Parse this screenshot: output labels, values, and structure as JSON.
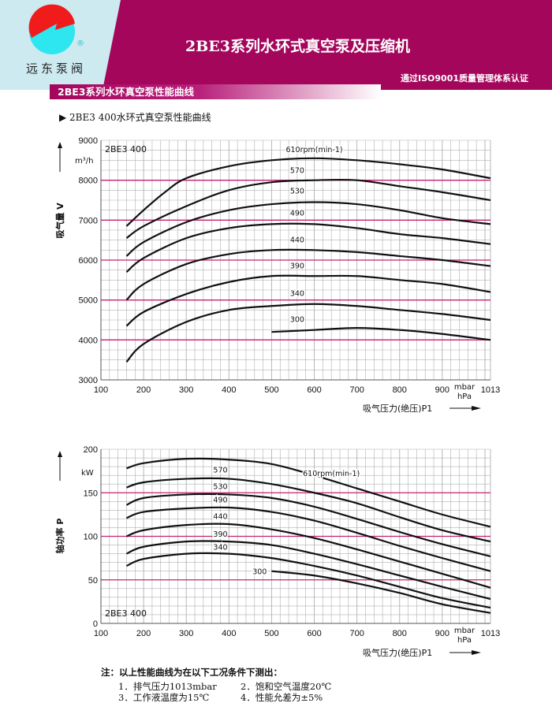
{
  "header": {
    "title": "2BE3系列水环式真空泵及压缩机",
    "certification": "通过ISO9001质量管理体系认证",
    "brand": "远东泵阀",
    "registered": "®"
  },
  "colors": {
    "brand": "#a4065c",
    "logo_red": "#f01c1c",
    "logo_cyan": "#2ee6f0",
    "gridline": "#b0b0b0",
    "major_line": "#c4206e"
  },
  "section_title": "2BE3系列水环真空泵性能曲线",
  "subtitle": "▶ 2BE3 400水环式真空泵性能曲线",
  "chart_data": [
    {
      "type": "line",
      "title": "2BE3 400",
      "ylabel": "吸气量 V",
      "yunit": "m³/h",
      "xlabel": "吸气压力(绝压)P1",
      "xunit_top": "mbar",
      "xunit_bottom": "hPa",
      "xlim": [
        100,
        1013
      ],
      "ylim": [
        3000,
        9000
      ],
      "xticks": [
        100,
        200,
        300,
        400,
        500,
        600,
        700,
        800,
        900,
        1013
      ],
      "yticks": [
        3000,
        4000,
        5000,
        6000,
        7000,
        8000,
        9000
      ],
      "series": [
        {
          "name": "610rpm(min-1)",
          "x": [
            160,
            200,
            250,
            300,
            400,
            500,
            600,
            700,
            800,
            900,
            1013
          ],
          "y": [
            6850,
            7250,
            7700,
            8050,
            8350,
            8500,
            8550,
            8500,
            8400,
            8270,
            8050
          ]
        },
        {
          "name": "570",
          "x": [
            160,
            200,
            300,
            400,
            500,
            600,
            700,
            800,
            900,
            1013
          ],
          "y": [
            6550,
            6850,
            7350,
            7750,
            7950,
            8000,
            8000,
            7850,
            7700,
            7500
          ]
        },
        {
          "name": "530",
          "x": [
            160,
            200,
            300,
            400,
            500,
            600,
            700,
            800,
            900,
            1013
          ],
          "y": [
            6100,
            6450,
            6950,
            7250,
            7400,
            7450,
            7400,
            7250,
            7050,
            6900
          ]
        },
        {
          "name": "490",
          "x": [
            160,
            200,
            300,
            400,
            500,
            600,
            700,
            800,
            900,
            1013
          ],
          "y": [
            5700,
            6050,
            6550,
            6800,
            6900,
            6900,
            6800,
            6650,
            6550,
            6400
          ]
        },
        {
          "name": "440",
          "x": [
            160,
            200,
            300,
            400,
            500,
            600,
            700,
            800,
            900,
            1013
          ],
          "y": [
            5000,
            5400,
            5900,
            6150,
            6250,
            6250,
            6200,
            6100,
            6000,
            5850
          ]
        },
        {
          "name": "390",
          "x": [
            160,
            200,
            300,
            400,
            500,
            600,
            700,
            800,
            900,
            1013
          ],
          "y": [
            4350,
            4700,
            5150,
            5450,
            5600,
            5600,
            5600,
            5500,
            5400,
            5200
          ]
        },
        {
          "name": "340",
          "x": [
            160,
            200,
            300,
            400,
            500,
            600,
            700,
            800,
            900,
            1013
          ],
          "y": [
            3450,
            3900,
            4450,
            4750,
            4850,
            4900,
            4850,
            4750,
            4650,
            4500
          ]
        },
        {
          "name": "300",
          "x": [
            500,
            600,
            700,
            800,
            900,
            1013
          ],
          "y": [
            4200,
            4250,
            4300,
            4250,
            4150,
            4000
          ]
        }
      ]
    },
    {
      "type": "line",
      "title": "2BE3 400",
      "ylabel": "轴功率 P",
      "yunit": "kW",
      "xlabel": "吸气压力(绝压)P1",
      "xunit_top": "mbar",
      "xunit_bottom": "hPa",
      "xlim": [
        100,
        1013
      ],
      "ylim": [
        0,
        200
      ],
      "xticks": [
        100,
        200,
        300,
        400,
        500,
        600,
        700,
        800,
        900,
        1013
      ],
      "yticks": [
        0,
        50,
        100,
        150,
        200
      ],
      "series": [
        {
          "name": "610rpm(min-1)",
          "x": [
            160,
            200,
            300,
            400,
            500,
            600,
            700,
            800,
            900,
            1013
          ],
          "y": [
            178,
            184,
            189,
            188,
            183,
            170,
            155,
            140,
            125,
            111
          ]
        },
        {
          "name": "570",
          "x": [
            160,
            200,
            300,
            400,
            500,
            600,
            700,
            800,
            900,
            1013
          ],
          "y": [
            156,
            162,
            166,
            166,
            160,
            150,
            138,
            122,
            107,
            94
          ]
        },
        {
          "name": "530",
          "x": [
            160,
            200,
            300,
            400,
            500,
            600,
            700,
            800,
            900,
            1013
          ],
          "y": [
            136,
            144,
            148,
            148,
            144,
            134,
            120,
            105,
            91,
            77
          ]
        },
        {
          "name": "490",
          "x": [
            160,
            200,
            300,
            400,
            500,
            600,
            700,
            800,
            900,
            1013
          ],
          "y": [
            121,
            128,
            132,
            133,
            128,
            118,
            104,
            89,
            75,
            60
          ]
        },
        {
          "name": "440",
          "x": [
            160,
            200,
            300,
            400,
            500,
            600,
            700,
            800,
            900,
            1013
          ],
          "y": [
            100,
            107,
            113,
            114,
            108,
            98,
            85,
            71,
            57,
            41
          ]
        },
        {
          "name": "390",
          "x": [
            160,
            200,
            300,
            400,
            500,
            600,
            700,
            800,
            900,
            1013
          ],
          "y": [
            80,
            88,
            94,
            94,
            90,
            80,
            68,
            55,
            42,
            28
          ]
        },
        {
          "name": "340",
          "x": [
            160,
            200,
            300,
            400,
            500,
            600,
            700,
            800,
            900,
            1013
          ],
          "y": [
            66,
            74,
            80,
            80,
            75,
            66,
            55,
            42,
            29,
            18
          ]
        },
        {
          "name": "300",
          "x": [
            500,
            600,
            700,
            800,
            900,
            1013
          ],
          "y": [
            60,
            55,
            46,
            35,
            22,
            12
          ]
        }
      ]
    }
  ],
  "notes": {
    "heading": "注：以上性能曲线为在以下工况条件下测出：",
    "items": [
      "1．排气压力1013mbar",
      "2．饱和空气温度20℃",
      "3．工作液温度为15℃",
      "4．性能允差为±5%"
    ]
  }
}
